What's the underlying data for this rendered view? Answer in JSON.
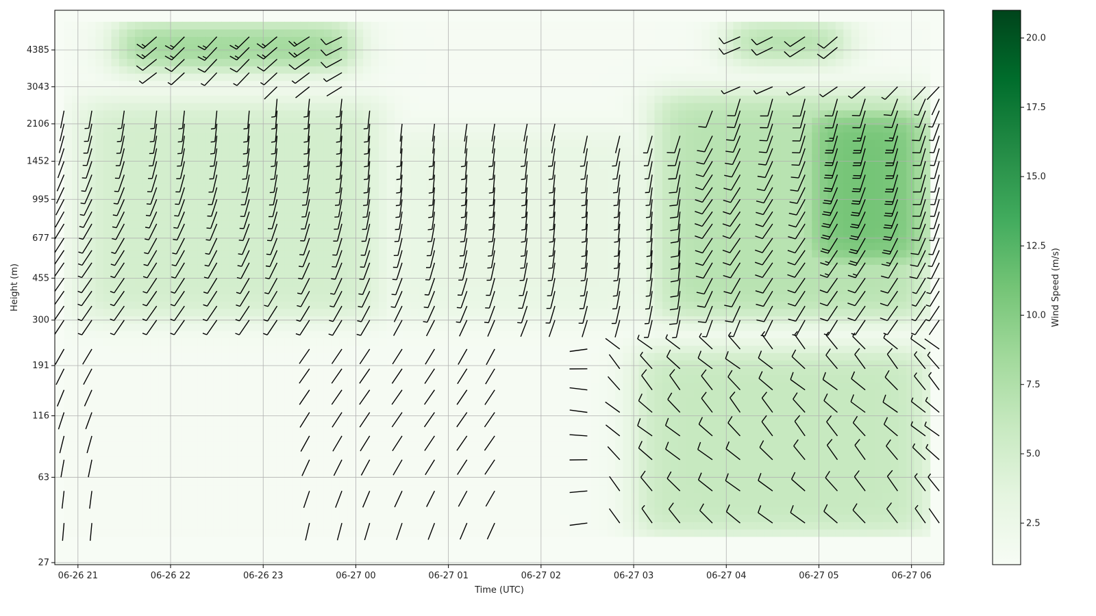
{
  "chart_data": {
    "type": "heatmap",
    "title": "",
    "xlabel": "Time (UTC)",
    "ylabel": "Height (m)",
    "x_ticks": [
      "06-26 21",
      "06-26 22",
      "06-26 23",
      "06-27 00",
      "06-27 01",
      "06-27 02",
      "06-27 03",
      "06-27 04",
      "06-27 05",
      "06-27 06"
    ],
    "y_ticks": [
      "27",
      "63",
      "116",
      "191",
      "300",
      "455",
      "677",
      "995",
      "1452",
      "2106",
      "3043",
      "4385"
    ],
    "xlim_hours_after_2100": [
      -0.25,
      9.35
    ],
    "ylim_heights_m": [
      27,
      6000
    ],
    "grid": true,
    "colormap": "Greens",
    "colorbar": {
      "label": "Wind Speed (m/s)",
      "ticks": [
        "2.5",
        "5.0",
        "7.5",
        "10.0",
        "12.5",
        "15.0",
        "17.5",
        "20.0"
      ],
      "range": [
        1,
        21
      ],
      "colors": [
        "#f7fcf5",
        "#e5f5e0",
        "#c7e9c0",
        "#a1d99b",
        "#74c476",
        "#41ab5d",
        "#238b45",
        "#006d2c",
        "#00441b"
      ]
    },
    "speed_regions": [
      {
        "name": "upper-left jet",
        "t": [
          0.4,
          3.0
        ],
        "z": [
          3600,
          5800
        ],
        "speed": 9
      },
      {
        "name": "upper-right jet",
        "t": [
          7.0,
          8.3
        ],
        "z": [
          3900,
          5800
        ],
        "speed": 8
      },
      {
        "name": "evening mid layer",
        "t": [
          0.0,
          3.3
        ],
        "z": [
          300,
          2700
        ],
        "speed": 5
      },
      {
        "name": "post-midnight mid layer",
        "t": [
          3.3,
          6.2
        ],
        "z": [
          300,
          2000
        ],
        "speed": 3
      },
      {
        "name": "morning mid layer",
        "t": [
          6.2,
          9.2
        ],
        "z": [
          300,
          2900
        ],
        "speed": 7
      },
      {
        "name": "morning core",
        "t": [
          7.8,
          9.2
        ],
        "z": [
          500,
          2500
        ],
        "speed": 11
      },
      {
        "name": "morning low layer",
        "t": [
          6.0,
          9.2
        ],
        "z": [
          35,
          230
        ],
        "speed": 6
      }
    ],
    "barbs": {
      "time_columns_hours": [
        -0.15,
        0.15,
        0.5,
        0.85,
        1.15,
        1.5,
        1.85,
        2.15,
        2.5,
        2.85,
        3.15,
        3.5,
        3.85,
        4.2,
        4.5,
        4.85,
        5.15,
        5.5,
        5.85,
        6.2,
        6.5,
        6.85,
        7.15,
        7.5,
        7.85,
        8.2,
        8.5,
        8.85,
        9.15,
        9.3
      ],
      "height_levels_m": [
        40,
        55,
        75,
        95,
        120,
        150,
        185,
        225,
        300,
        345,
        400,
        455,
        530,
        600,
        677,
        780,
        880,
        995,
        1120,
        1270,
        1452,
        1650,
        1870,
        2106,
        2400,
        2700,
        3043,
        3500,
        4000,
        4500,
        5000
      ],
      "speed_unit": "m/s"
    }
  }
}
